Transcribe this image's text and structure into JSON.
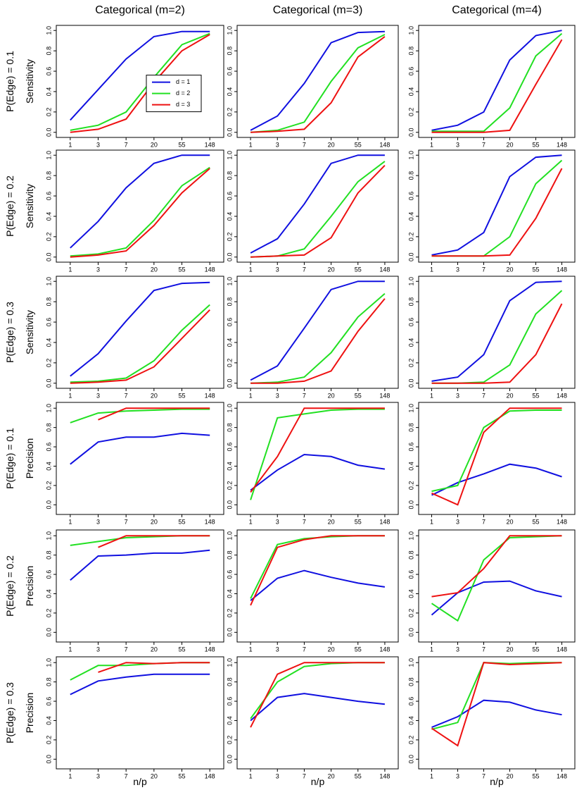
{
  "chart_data": [
    {
      "type": "line",
      "title": "Categorical (m=2)",
      "row_label": "P(Edge) = 0.1",
      "ylabel": "Sensitivity",
      "legend": "right",
      "categories": [
        "1",
        "3",
        "7",
        "20",
        "55",
        "148"
      ],
      "ylim": [
        -0.05,
        1.05
      ],
      "yticks": [
        {
          "value": 0,
          "label": "0.0"
        },
        0.2,
        0.4,
        0.6,
        0.8,
        {
          "value": 1,
          "label": "1.0"
        }
      ],
      "series": [
        {
          "name": "d = 1",
          "color": "#1010e0",
          "values": [
            0.12,
            0.42,
            0.72,
            0.94,
            0.99,
            0.99
          ]
        },
        {
          "name": "d = 2",
          "color": "#22e022",
          "values": [
            0.02,
            0.07,
            0.2,
            0.54,
            0.86,
            0.97
          ]
        },
        {
          "name": "d = 3",
          "color": "#ee1111",
          "values": [
            0.0,
            0.03,
            0.13,
            0.49,
            0.8,
            0.96
          ]
        }
      ]
    },
    {
      "type": "line",
      "title": "Categorical (m=3)",
      "categories": [
        "1",
        "3",
        "7",
        "20",
        "55",
        "148"
      ],
      "ylim": [
        -0.05,
        1.05
      ],
      "yticks": [
        {
          "value": 0,
          "label": "0.0"
        },
        0.2,
        0.4,
        0.6,
        0.8,
        {
          "value": 1,
          "label": "1.0"
        }
      ],
      "series": [
        {
          "color": "#1010e0",
          "values": [
            0.02,
            0.16,
            0.48,
            0.88,
            0.98,
            0.99
          ]
        },
        {
          "color": "#22e022",
          "values": [
            0.0,
            0.02,
            0.1,
            0.5,
            0.83,
            0.96
          ]
        },
        {
          "color": "#ee1111",
          "values": [
            0.0,
            0.01,
            0.03,
            0.29,
            0.74,
            0.94
          ]
        }
      ]
    },
    {
      "type": "line",
      "title": "Categorical (m=4)",
      "categories": [
        "1",
        "3",
        "7",
        "20",
        "55",
        "148"
      ],
      "ylim": [
        -0.05,
        1.05
      ],
      "yticks": [
        {
          "value": 0,
          "label": "0.0"
        },
        0.2,
        0.4,
        0.6,
        0.8,
        {
          "value": 1,
          "label": "1.0"
        }
      ],
      "series": [
        {
          "color": "#1010e0",
          "values": [
            0.02,
            0.07,
            0.2,
            0.71,
            0.95,
            1.0
          ]
        },
        {
          "color": "#22e022",
          "values": [
            0.01,
            0.01,
            0.01,
            0.24,
            0.75,
            0.97
          ]
        },
        {
          "color": "#ee1111",
          "values": [
            0.0,
            0.0,
            0.0,
            0.02,
            0.47,
            0.91
          ]
        }
      ]
    },
    {
      "type": "line",
      "row_label": "P(Edge) = 0.2",
      "ylabel": "Sensitivity",
      "categories": [
        "1",
        "3",
        "7",
        "20",
        "55",
        "148"
      ],
      "ylim": [
        -0.05,
        1.05
      ],
      "yticks": [
        {
          "value": 0,
          "label": "0.0"
        },
        0.2,
        0.4,
        0.6,
        0.8,
        {
          "value": 1,
          "label": "1.0"
        }
      ],
      "series": [
        {
          "color": "#1010e0",
          "values": [
            0.09,
            0.35,
            0.68,
            0.92,
            1.0,
            1.0
          ]
        },
        {
          "color": "#22e022",
          "values": [
            0.01,
            0.03,
            0.09,
            0.36,
            0.7,
            0.88
          ]
        },
        {
          "color": "#ee1111",
          "values": [
            0.0,
            0.02,
            0.06,
            0.31,
            0.63,
            0.87
          ]
        }
      ]
    },
    {
      "type": "line",
      "categories": [
        "1",
        "3",
        "7",
        "20",
        "55",
        "148"
      ],
      "ylim": [
        -0.05,
        1.05
      ],
      "yticks": [
        {
          "value": 0,
          "label": "0.0"
        },
        0.2,
        0.4,
        0.6,
        0.8,
        {
          "value": 1,
          "label": "1.0"
        }
      ],
      "series": [
        {
          "color": "#1010e0",
          "values": [
            0.04,
            0.18,
            0.52,
            0.92,
            1.0,
            1.0
          ]
        },
        {
          "color": "#22e022",
          "values": [
            0.0,
            0.01,
            0.08,
            0.4,
            0.74,
            0.94
          ]
        },
        {
          "color": "#ee1111",
          "values": [
            0.0,
            0.01,
            0.02,
            0.19,
            0.63,
            0.9
          ]
        }
      ]
    },
    {
      "type": "line",
      "categories": [
        "1",
        "3",
        "7",
        "20",
        "55",
        "148"
      ],
      "ylim": [
        -0.05,
        1.05
      ],
      "yticks": [
        {
          "value": 0,
          "label": "0.0"
        },
        0.2,
        0.4,
        0.6,
        0.8,
        {
          "value": 1,
          "label": "1.0"
        }
      ],
      "series": [
        {
          "color": "#1010e0",
          "values": [
            0.02,
            0.07,
            0.24,
            0.79,
            0.98,
            1.0
          ]
        },
        {
          "color": "#22e022",
          "values": [
            0.01,
            0.01,
            0.01,
            0.2,
            0.72,
            0.95
          ]
        },
        {
          "color": "#ee1111",
          "values": [
            0.01,
            0.01,
            0.01,
            0.02,
            0.38,
            0.87
          ]
        }
      ]
    },
    {
      "type": "line",
      "row_label": "P(Edge) = 0.3",
      "ylabel": "Sensitivity",
      "categories": [
        "1",
        "3",
        "7",
        "20",
        "55",
        "148"
      ],
      "ylim": [
        -0.05,
        1.05
      ],
      "yticks": [
        {
          "value": 0,
          "label": "0.0"
        },
        0.2,
        0.4,
        0.6,
        0.8,
        {
          "value": 1,
          "label": "1.0"
        }
      ],
      "series": [
        {
          "color": "#1010e0",
          "values": [
            0.07,
            0.29,
            0.61,
            0.91,
            0.98,
            0.99
          ]
        },
        {
          "color": "#22e022",
          "values": [
            0.01,
            0.02,
            0.05,
            0.22,
            0.52,
            0.77
          ]
        },
        {
          "color": "#ee1111",
          "values": [
            0.0,
            0.01,
            0.03,
            0.16,
            0.44,
            0.72
          ]
        }
      ]
    },
    {
      "type": "line",
      "categories": [
        "1",
        "3",
        "7",
        "20",
        "55",
        "148"
      ],
      "ylim": [
        -0.05,
        1.05
      ],
      "yticks": [
        {
          "value": 0,
          "label": "0.0"
        },
        0.2,
        0.4,
        0.6,
        0.8,
        {
          "value": 1,
          "label": "1.0"
        }
      ],
      "series": [
        {
          "color": "#1010e0",
          "values": [
            0.03,
            0.17,
            0.54,
            0.92,
            1.0,
            1.0
          ]
        },
        {
          "color": "#22e022",
          "values": [
            0.0,
            0.01,
            0.06,
            0.3,
            0.65,
            0.88
          ]
        },
        {
          "color": "#ee1111",
          "values": [
            0.0,
            0.0,
            0.02,
            0.12,
            0.51,
            0.83
          ]
        }
      ]
    },
    {
      "type": "line",
      "categories": [
        "1",
        "3",
        "7",
        "20",
        "55",
        "148"
      ],
      "ylim": [
        -0.05,
        1.05
      ],
      "yticks": [
        {
          "value": 0,
          "label": "0.0"
        },
        0.2,
        0.4,
        0.6,
        0.8,
        {
          "value": 1,
          "label": "1.0"
        }
      ],
      "series": [
        {
          "color": "#1010e0",
          "values": [
            0.02,
            0.06,
            0.28,
            0.81,
            0.99,
            1.0
          ]
        },
        {
          "color": "#22e022",
          "values": [
            0.0,
            0.0,
            0.01,
            0.18,
            0.68,
            0.91
          ]
        },
        {
          "color": "#ee1111",
          "values": [
            0.0,
            0.0,
            0.0,
            0.01,
            0.28,
            0.78
          ]
        }
      ]
    },
    {
      "type": "line",
      "row_label": "P(Edge) = 0.1",
      "ylabel": "Precision",
      "categories": [
        "1",
        "3",
        "7",
        "20",
        "55",
        "148"
      ],
      "ylim": [
        -0.1,
        1.06
      ],
      "yticks": [
        {
          "value": 0,
          "label": "0.0"
        },
        0.2,
        0.4,
        0.6,
        0.8,
        {
          "value": 1,
          "label": "1.0"
        }
      ],
      "series": [
        {
          "color": "#1010e0",
          "values": [
            0.42,
            0.65,
            0.7,
            0.7,
            0.74,
            0.72
          ]
        },
        {
          "color": "#22e022",
          "values": [
            0.85,
            0.95,
            0.97,
            0.98,
            0.99,
            0.99
          ]
        },
        {
          "color": "#ee1111",
          "values": [
            null,
            0.88,
            1.0,
            1.0,
            1.0,
            1.0
          ]
        }
      ]
    },
    {
      "type": "line",
      "categories": [
        "1",
        "3",
        "7",
        "20",
        "55",
        "148"
      ],
      "ylim": [
        -0.1,
        1.06
      ],
      "yticks": [
        {
          "value": 0,
          "label": "0.0"
        },
        0.2,
        0.4,
        0.6,
        0.8,
        {
          "value": 1,
          "label": "1.0"
        }
      ],
      "series": [
        {
          "color": "#1010e0",
          "values": [
            0.15,
            0.36,
            0.52,
            0.5,
            0.41,
            0.37
          ]
        },
        {
          "color": "#22e022",
          "values": [
            0.05,
            0.9,
            0.94,
            0.98,
            0.99,
            0.99
          ]
        },
        {
          "color": "#ee1111",
          "values": [
            0.13,
            0.5,
            1.0,
            1.0,
            1.0,
            1.0
          ]
        }
      ]
    },
    {
      "type": "line",
      "categories": [
        "1",
        "3",
        "7",
        "20",
        "55",
        "148"
      ],
      "ylim": [
        -0.1,
        1.06
      ],
      "yticks": [
        {
          "value": 0,
          "label": "0.0"
        },
        0.2,
        0.4,
        0.6,
        0.8,
        {
          "value": 1,
          "label": "1.0"
        }
      ],
      "series": [
        {
          "color": "#1010e0",
          "values": [
            0.1,
            0.23,
            0.32,
            0.42,
            0.38,
            0.29
          ]
        },
        {
          "color": "#22e022",
          "values": [
            0.14,
            0.2,
            0.8,
            0.97,
            0.98,
            0.98
          ]
        },
        {
          "color": "#ee1111",
          "values": [
            0.12,
            0.0,
            0.75,
            1.0,
            1.0,
            1.0
          ]
        }
      ]
    },
    {
      "type": "line",
      "row_label": "P(Edge) = 0.2",
      "ylabel": "Precision",
      "categories": [
        "1",
        "3",
        "7",
        "20",
        "55",
        "148"
      ],
      "ylim": [
        -0.1,
        1.06
      ],
      "yticks": [
        {
          "value": 0,
          "label": "0.0"
        },
        0.2,
        0.4,
        0.6,
        0.8,
        {
          "value": 1,
          "label": "1.0"
        }
      ],
      "series": [
        {
          "color": "#1010e0",
          "values": [
            0.54,
            0.79,
            0.8,
            0.82,
            0.82,
            0.85
          ]
        },
        {
          "color": "#22e022",
          "values": [
            0.9,
            0.94,
            0.98,
            0.99,
            1.0,
            1.0
          ]
        },
        {
          "color": "#ee1111",
          "values": [
            null,
            0.88,
            1.0,
            1.0,
            1.0,
            1.0
          ]
        }
      ]
    },
    {
      "type": "line",
      "categories": [
        "1",
        "3",
        "7",
        "20",
        "55",
        "148"
      ],
      "ylim": [
        -0.1,
        1.06
      ],
      "yticks": [
        {
          "value": 0,
          "label": "0.0"
        },
        0.2,
        0.4,
        0.6,
        0.8,
        {
          "value": 1,
          "label": "1.0"
        }
      ],
      "series": [
        {
          "color": "#1010e0",
          "values": [
            0.33,
            0.56,
            0.64,
            0.57,
            0.51,
            0.47
          ]
        },
        {
          "color": "#22e022",
          "values": [
            0.35,
            0.91,
            0.97,
            0.99,
            1.0,
            1.0
          ]
        },
        {
          "color": "#ee1111",
          "values": [
            0.28,
            0.88,
            0.96,
            1.0,
            1.0,
            1.0
          ]
        }
      ]
    },
    {
      "type": "line",
      "categories": [
        "1",
        "3",
        "7",
        "20",
        "55",
        "148"
      ],
      "ylim": [
        -0.1,
        1.06
      ],
      "yticks": [
        {
          "value": 0,
          "label": "0.0"
        },
        0.2,
        0.4,
        0.6,
        0.8,
        {
          "value": 1,
          "label": "1.0"
        }
      ],
      "series": [
        {
          "color": "#1010e0",
          "values": [
            0.18,
            0.41,
            0.52,
            0.53,
            0.43,
            0.37
          ]
        },
        {
          "color": "#22e022",
          "values": [
            0.3,
            0.12,
            0.75,
            0.98,
            0.99,
            1.0
          ]
        },
        {
          "color": "#ee1111",
          "values": [
            0.37,
            0.41,
            0.66,
            1.0,
            1.0,
            1.0
          ]
        }
      ]
    },
    {
      "type": "line",
      "row_label": "P(Edge) = 0.3",
      "ylabel": "Precision",
      "xlabel": "n/p",
      "categories": [
        "1",
        "3",
        "7",
        "20",
        "55",
        "148"
      ],
      "ylim": [
        -0.1,
        1.06
      ],
      "yticks": [
        {
          "value": 0,
          "label": "0.0"
        },
        0.2,
        0.4,
        0.6,
        0.8,
        {
          "value": 1,
          "label": "1.0"
        }
      ],
      "series": [
        {
          "color": "#1010e0",
          "values": [
            0.67,
            0.81,
            0.85,
            0.88,
            0.88,
            0.88
          ]
        },
        {
          "color": "#22e022",
          "values": [
            0.82,
            0.97,
            0.97,
            0.99,
            1.0,
            1.0
          ]
        },
        {
          "color": "#ee1111",
          "values": [
            null,
            0.9,
            1.0,
            0.99,
            1.0,
            1.0
          ]
        }
      ]
    },
    {
      "type": "line",
      "xlabel": "n/p",
      "categories": [
        "1",
        "3",
        "7",
        "20",
        "55",
        "148"
      ],
      "ylim": [
        -0.1,
        1.06
      ],
      "yticks": [
        {
          "value": 0,
          "label": "0.0"
        },
        0.2,
        0.4,
        0.6,
        0.8,
        {
          "value": 1,
          "label": "1.0"
        }
      ],
      "series": [
        {
          "color": "#1010e0",
          "values": [
            0.4,
            0.64,
            0.68,
            0.64,
            0.6,
            0.57
          ]
        },
        {
          "color": "#22e022",
          "values": [
            0.42,
            0.8,
            0.96,
            0.99,
            1.0,
            1.0
          ]
        },
        {
          "color": "#ee1111",
          "values": [
            0.33,
            0.88,
            1.0,
            1.0,
            1.0,
            1.0
          ]
        }
      ]
    },
    {
      "type": "line",
      "xlabel": "n/p",
      "categories": [
        "1",
        "3",
        "7",
        "20",
        "55",
        "148"
      ],
      "ylim": [
        -0.1,
        1.06
      ],
      "yticks": [
        {
          "value": 0,
          "label": "0.0"
        },
        0.2,
        0.4,
        0.6,
        0.8,
        {
          "value": 1,
          "label": "1.0"
        }
      ],
      "series": [
        {
          "color": "#1010e0",
          "values": [
            0.33,
            0.44,
            0.61,
            0.59,
            0.51,
            0.46
          ]
        },
        {
          "color": "#22e022",
          "values": [
            0.31,
            0.38,
            1.0,
            0.99,
            1.0,
            1.0
          ]
        },
        {
          "color": "#ee1111",
          "values": [
            0.32,
            0.14,
            1.0,
            0.98,
            0.99,
            1.0
          ]
        }
      ]
    }
  ]
}
